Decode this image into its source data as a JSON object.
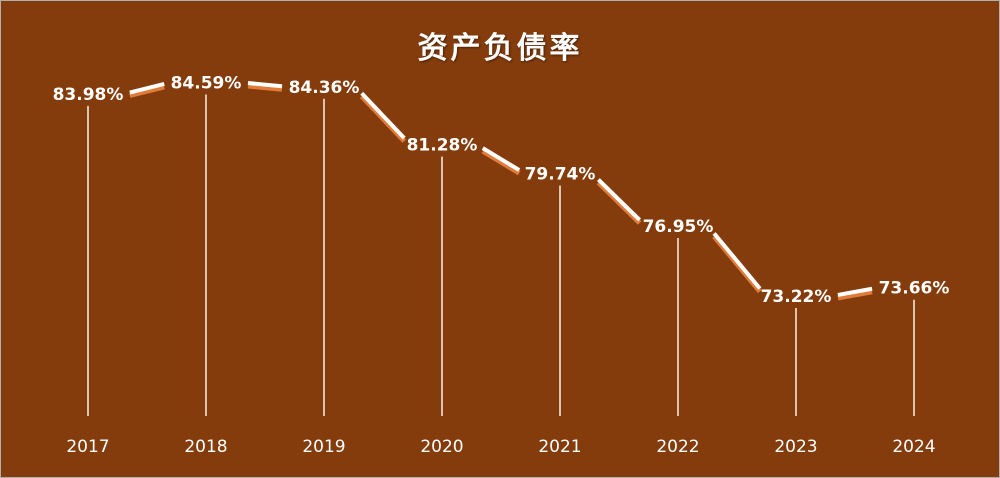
{
  "chart_data": {
    "type": "line",
    "title": "资产负债率",
    "categories": [
      "2017",
      "2018",
      "2019",
      "2020",
      "2021",
      "2022",
      "2023",
      "2024"
    ],
    "series": [
      {
        "values": [
          83.98,
          84.59,
          84.36,
          81.28,
          79.74,
          76.95,
          73.22,
          73.66
        ],
        "labels": [
          "83.98%",
          "84.59%",
          "84.36%",
          "81.28%",
          "79.74%",
          "76.95%",
          "73.22%",
          "73.66%"
        ]
      }
    ],
    "xlabel": "",
    "ylabel": "",
    "ylim": [
      68,
      86
    ],
    "grid": false,
    "legend": "none",
    "drop_lines": true,
    "colors": {
      "background": "#843c0c",
      "line": "#ffffff",
      "line_shadow": "#e07b39",
      "text": "#ffffff"
    }
  }
}
